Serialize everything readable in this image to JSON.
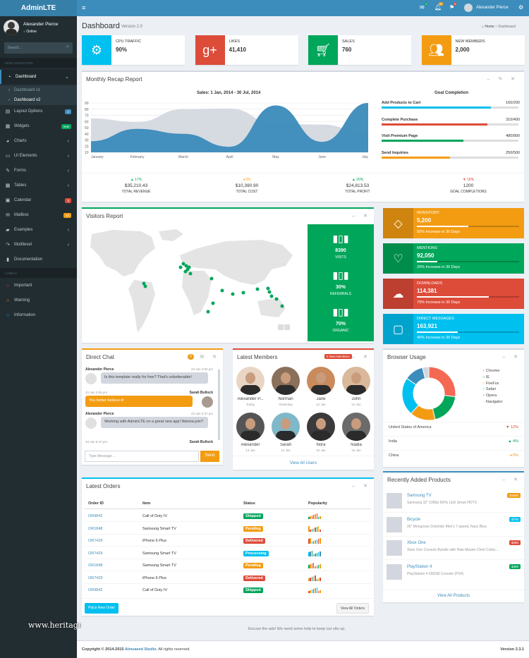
{
  "app": {
    "logo": "AdminLTE",
    "user": "Alexander Pierce",
    "status": "Online",
    "search_placeholder": "Search...",
    "nav_header": "MAIN NAVIGATION",
    "labels_header": "LABELS"
  },
  "nav": [
    {
      "label": "Dashboard",
      "icon": "dashboard-icon"
    },
    {
      "label": "Dashboard v1"
    },
    {
      "label": "Dashboard v2"
    },
    {
      "label": "Layout Options",
      "icon": "files-icon",
      "badge": "4",
      "badge_color": "#3c8dbc"
    },
    {
      "label": "Widgets",
      "icon": "th-icon",
      "badge": "new",
      "badge_color": "#00a65a"
    },
    {
      "label": "Charts",
      "icon": "pie-chart-icon"
    },
    {
      "label": "UI Elements",
      "icon": "laptop-icon"
    },
    {
      "label": "Forms",
      "icon": "edit-icon"
    },
    {
      "label": "Tables",
      "icon": "table-icon"
    },
    {
      "label": "Calendar",
      "icon": "calendar-icon",
      "badge": "3",
      "badge_color": "#dd4b39"
    },
    {
      "label": "Mailbox",
      "icon": "envelope-icon",
      "badge": "12",
      "badge_color": "#f39c12"
    },
    {
      "label": "Examples",
      "icon": "folder-icon"
    },
    {
      "label": "Multilevel",
      "icon": "share-icon"
    },
    {
      "label": "Documentation",
      "icon": "book-icon"
    }
  ],
  "label_items": [
    {
      "label": "Important",
      "color": "#dd4b39"
    },
    {
      "label": "Warning",
      "color": "#f39c12"
    },
    {
      "label": "Information",
      "color": "#00c0ef"
    }
  ],
  "topbar": {
    "user": "Alexander Pierce",
    "mail_count": "4",
    "notif_count": "10",
    "task_count": "9"
  },
  "header": {
    "title": "Dashboard",
    "subtitle": "Version 2.0",
    "crumb_home": "Home",
    "crumb_current": "Dashboard"
  },
  "info_boxes": [
    {
      "label": "CPU TRAFFIC",
      "value": "90%",
      "color": "#00c0ef",
      "icon": "gear-icon"
    },
    {
      "label": "LIKES",
      "value": "41,410",
      "color": "#dd4b39",
      "icon": "google-plus-icon"
    },
    {
      "label": "SALES",
      "value": "760",
      "color": "#00a65a",
      "icon": "cart-icon"
    },
    {
      "label": "NEW MEMBERS",
      "value": "2,000",
      "color": "#f39c12",
      "icon": "users-icon"
    }
  ],
  "recap": {
    "title": "Monthly Recap Report",
    "chart_title": "Sales: 1 Jan, 2014 - 30 Jul, 2014",
    "goal_title": "Goal Completion",
    "goals": [
      {
        "label": "Add Products to Cart",
        "value": "160/200",
        "pct": 0.8,
        "color": "#00c0ef"
      },
      {
        "label": "Complete Purchase",
        "value": "310/400",
        "pct": 0.775,
        "color": "#dd4b39"
      },
      {
        "label": "Visit Premium Page",
        "value": "480/800",
        "pct": 0.6,
        "color": "#00a65a"
      },
      {
        "label": "Send Inquiries",
        "value": "250/500",
        "pct": 0.5,
        "color": "#f39c12"
      }
    ],
    "stats": [
      {
        "pct": "▲ 17%",
        "pct_color": "#00a65a",
        "value": "$35,210.43",
        "label": "TOTAL REVENUE"
      },
      {
        "pct": "◂ 0%",
        "pct_color": "#f39c12",
        "value": "$10,390.90",
        "label": "TOTAL COST"
      },
      {
        "pct": "▲ 20%",
        "pct_color": "#00a65a",
        "value": "$24,813.53",
        "label": "TOTAL PROFIT"
      },
      {
        "pct": "▼ 18%",
        "pct_color": "#dd4b39",
        "value": "1200",
        "label": "GOAL COMPLETIONS"
      }
    ]
  },
  "chart_data": {
    "type": "area",
    "title": "Sales: 1 Jan, 2014 - 30 Jul, 2014",
    "categories": [
      "January",
      "February",
      "March",
      "April",
      "May",
      "June",
      "July"
    ],
    "yticks": [
      10,
      20,
      30,
      40,
      50,
      60,
      70,
      80,
      90
    ],
    "ylim": [
      10,
      90
    ],
    "series": [
      {
        "values": [
          65,
          59,
          80,
          81,
          56,
          55,
          40
        ],
        "color": "#d2d6de"
      },
      {
        "values": [
          28,
          48,
          40,
          19,
          86,
          27,
          90
        ],
        "color": "#3b8bba"
      }
    ]
  },
  "visitors": {
    "title": "Visitors Report",
    "visits": "8390",
    "visits_label": "VISITS",
    "referrals": "30%",
    "referrals_label": "REFERRALS",
    "organic": "70%",
    "organic_label": "ORGANIC"
  },
  "side_stats": [
    {
      "label": "INVENTORY",
      "value": "5,200",
      "desc": "50% Increase in 30 Days",
      "pct": 0.5,
      "color": "#f39c12",
      "icon": "tag-icon"
    },
    {
      "label": "MENTIONS",
      "value": "92,050",
      "desc": "20% Increase in 30 Days",
      "pct": 0.2,
      "color": "#00a65a",
      "icon": "heart-icon"
    },
    {
      "label": "DOWNLOADS",
      "value": "114,381",
      "desc": "70% Increase in 30 Days",
      "pct": 0.7,
      "color": "#dd4b39",
      "icon": "cloud-download-icon"
    },
    {
      "label": "DIRECT MESSAGES",
      "value": "163,921",
      "desc": "40% Increase in 30 Days",
      "pct": 0.4,
      "color": "#00c0ef",
      "icon": "chat-bubble-icon"
    }
  ],
  "chat": {
    "title": "Direct Chat",
    "count": "3",
    "placeholder": "Type Message ...",
    "send": "Send",
    "messages": [
      {
        "name": "Alexander Pierce",
        "time": "23 Jan 2:00 pm",
        "text": "Is this template really for free? That's unbelievable!",
        "side": "left"
      },
      {
        "name": "Sarah Bullock",
        "time": "23 Jan 2:05 pm",
        "text": "You better believe it!",
        "side": "right"
      },
      {
        "name": "Alexander Pierce",
        "time": "23 Jan 5:37 pm",
        "text": "Working with AdminLTE on a great new app! Wanna join?",
        "side": "left"
      },
      {
        "name": "Sarah Bullock",
        "time": "23 Jan 6:10 pm",
        "text": "",
        "side": "right"
      }
    ]
  },
  "members": {
    "title": "Latest Members",
    "badge": "8 New Members",
    "view_all": "View All Users",
    "list": [
      {
        "name": "Alexander P...",
        "date": "Today"
      },
      {
        "name": "Norman",
        "date": "Yesterday"
      },
      {
        "name": "Jane",
        "date": "12 Jan"
      },
      {
        "name": "John",
        "date": "12 Jan"
      },
      {
        "name": "Alexander",
        "date": "13 Jan"
      },
      {
        "name": "Sarah",
        "date": "14 Jan"
      },
      {
        "name": "Nora",
        "date": "15 Jan"
      },
      {
        "name": "Nadia",
        "date": "15 Jan"
      }
    ]
  },
  "browser": {
    "title": "Browser Usage",
    "legend": [
      {
        "name": "Chrome",
        "color": "#f56954",
        "value": 700
      },
      {
        "name": "IE",
        "color": "#00a65a",
        "value": 500
      },
      {
        "name": "FireFox",
        "color": "#f39c12",
        "value": 400
      },
      {
        "name": "Safari",
        "color": "#00c0ef",
        "value": 600
      },
      {
        "name": "Opera",
        "color": "#3c8dbc",
        "value": 300
      },
      {
        "name": "Navigator",
        "color": "#d2d6de",
        "value": 100
      }
    ],
    "countries": [
      {
        "name": "United States of America",
        "pct": "▼ 12%",
        "color": "#dd4b39"
      },
      {
        "name": "India",
        "pct": "▲ 4%",
        "color": "#00a65a"
      },
      {
        "name": "China",
        "pct": "◂ 0%",
        "color": "#f39c12"
      }
    ]
  },
  "orders": {
    "title": "Latest Orders",
    "headers": [
      "Order ID",
      "Item",
      "Status",
      "Popularity"
    ],
    "rows": [
      {
        "id": "OR9842",
        "item": "Call of Duty IV",
        "status": "Shipped",
        "color": "#00a65a"
      },
      {
        "id": "OR1848",
        "item": "Samsung Smart TV",
        "status": "Pending",
        "color": "#f39c12"
      },
      {
        "id": "OR7429",
        "item": "iPhone 6 Plus",
        "status": "Delivered",
        "color": "#dd4b39"
      },
      {
        "id": "OR7429",
        "item": "Samsung Smart TV",
        "status": "Processing",
        "color": "#00c0ef"
      },
      {
        "id": "OR1848",
        "item": "Samsung Smart TV",
        "status": "Pending",
        "color": "#f39c12"
      },
      {
        "id": "OR7429",
        "item": "iPhone 6 Plus",
        "status": "Delivered",
        "color": "#dd4b39"
      },
      {
        "id": "OR9842",
        "item": "Call of Duty IV",
        "status": "Shipped",
        "color": "#00a65a"
      }
    ],
    "place": "Place New Order",
    "view_all": "View All Orders"
  },
  "products": {
    "title": "Recently Added Products",
    "view_all": "View All Products",
    "list": [
      {
        "name": "Samsung TV",
        "desc": "Samsung 32\" 1080p 60Hz LED Smart HDTV.",
        "price": "$1800",
        "color": "#f39c12"
      },
      {
        "name": "Bicycle",
        "desc": "26\" Mongoose Dolomite Men's 7-speed, Navy Blue.",
        "price": "$700",
        "color": "#00c0ef"
      },
      {
        "name": "Xbox One",
        "desc": "Xbox One Console Bundle with Halo Master Chief Collec...",
        "price": "$350",
        "color": "#dd4b39"
      },
      {
        "name": "PlayStation 4",
        "desc": "PlayStation 4 500GB Console (PS4)",
        "price": "$399",
        "color": "#00a65a"
      }
    ]
  },
  "footer": {
    "ads": "Excuse the ads! We need some help to keep our site up.",
    "copyright": "Copyright © 2014-2015",
    "company": "Almsaeed Studio.",
    "rights": "All rights reserved.",
    "version": "Version 2.3.1"
  },
  "watermark": "www.heritagechristiancollege.com"
}
